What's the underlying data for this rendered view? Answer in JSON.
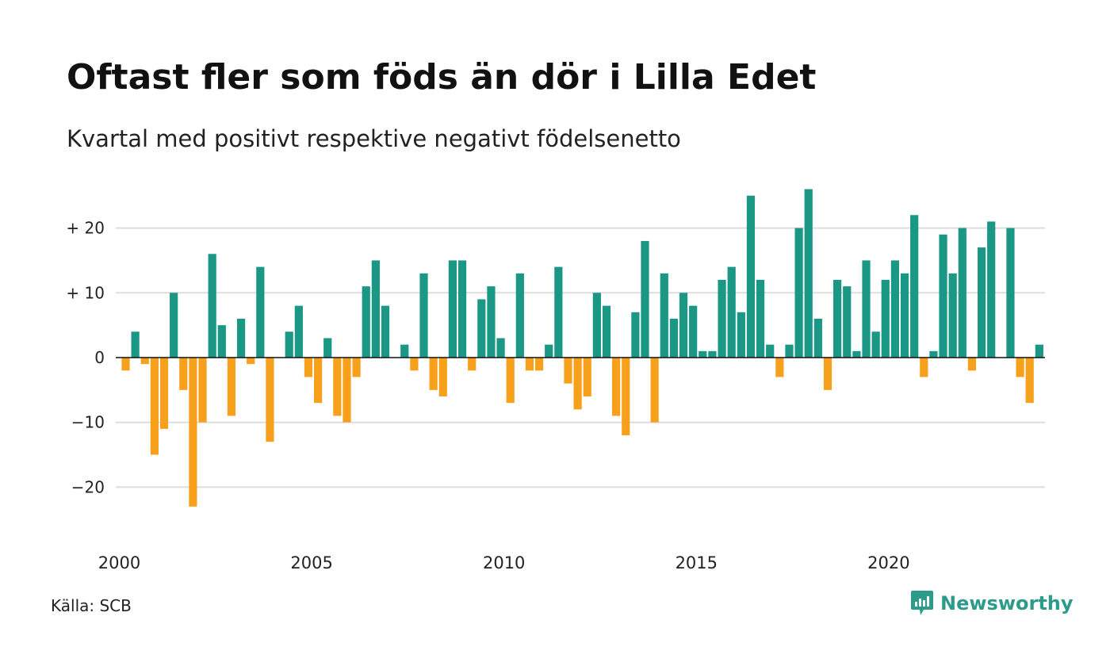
{
  "header": {
    "title": "Oftast fler som föds än dör i Lilla Edet",
    "subtitle": "Kvartal med positivt respektive negativt födelsenetto"
  },
  "footer": {
    "source": "Källa: SCB",
    "brand": "Newsworthy",
    "brand_icon": "newsworthy-logo-icon"
  },
  "colors": {
    "positive": "#1a9785",
    "negative": "#f6a01c",
    "grid": "#dddddd",
    "brand": "#2d9b8a"
  },
  "chart_data": {
    "type": "bar",
    "title": "Oftast fler som föds än dör i Lilla Edet",
    "subtitle": "Kvartal med positivt respektive negativt födelsenetto",
    "xlabel": "",
    "ylabel": "",
    "start_year": 2000,
    "periods_per_year": 4,
    "ylim": [
      -26,
      27
    ],
    "yticks": [
      20,
      10,
      0,
      -10,
      -20
    ],
    "ytick_labels": [
      "+ 20",
      "+ 10",
      "0",
      "−10",
      "−20"
    ],
    "xticks": [
      2000,
      2005,
      2010,
      2015,
      2020
    ],
    "xtick_labels": [
      "2000",
      "2005",
      "2010",
      "2015",
      "2020"
    ],
    "grid": true,
    "series": [
      {
        "values": [
          -2,
          4,
          -1,
          -15,
          -11,
          10,
          -5,
          -23,
          -10,
          16,
          5,
          -9,
          6,
          -1,
          14,
          -13,
          0,
          4,
          8,
          -3,
          -7,
          3,
          -9,
          -10,
          -3,
          11,
          15,
          8,
          0,
          2,
          -2,
          13,
          -5,
          -6,
          15,
          15,
          -2,
          9,
          11,
          3,
          -7,
          13,
          -2,
          -2,
          2,
          14,
          -4,
          -8,
          -6,
          10,
          8,
          -9,
          -12,
          7,
          18,
          -10,
          13,
          6,
          10,
          8,
          1,
          1,
          12,
          14,
          7,
          25,
          12,
          2,
          -3,
          2,
          20,
          26,
          6,
          -5,
          12,
          11,
          1,
          15,
          4,
          12,
          15,
          13,
          22,
          -3,
          1,
          19,
          13,
          20,
          -2,
          17,
          21,
          0,
          20,
          -3,
          -7,
          2
        ]
      }
    ]
  }
}
